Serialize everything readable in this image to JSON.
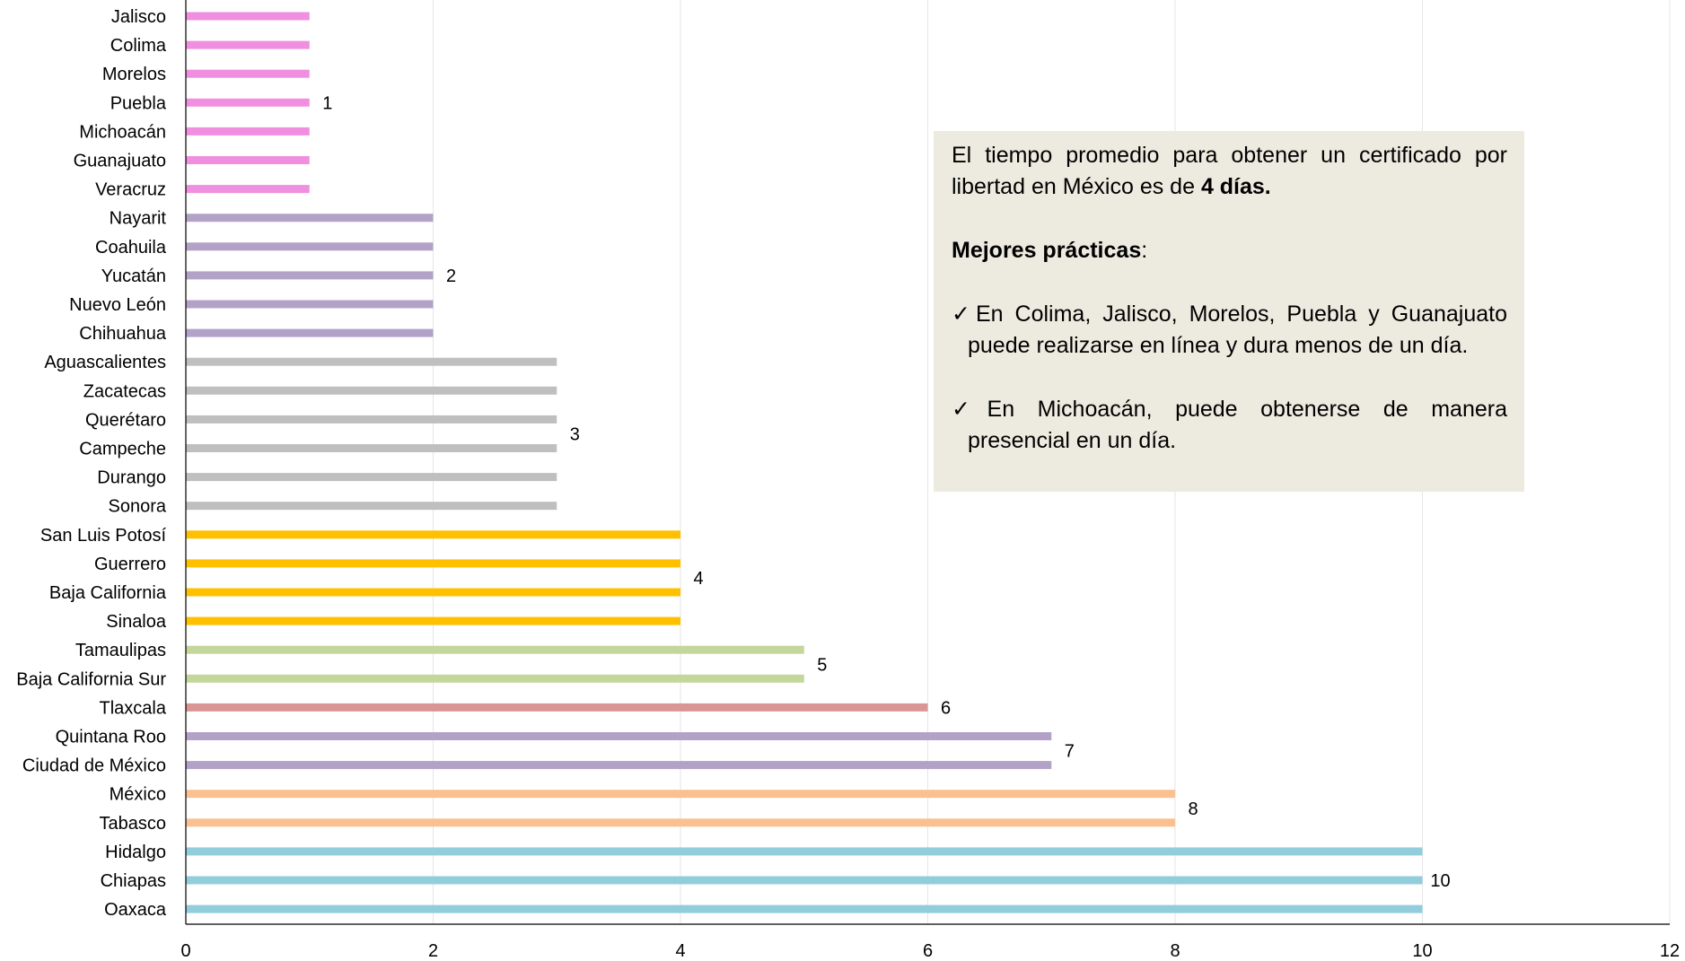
{
  "chart_data": {
    "type": "bar",
    "orientation": "horizontal",
    "categories": [
      "Jalisco",
      "Colima",
      "Morelos",
      "Puebla",
      "Michoacán",
      "Guanajuato",
      "Veracruz",
      "Nayarit",
      "Coahuila",
      "Yucatán",
      "Nuevo León",
      "Chihuahua",
      "Aguascalientes",
      "Zacatecas",
      "Querétaro",
      "Campeche",
      "Durango",
      "Sonora",
      "San Luis Potosí",
      "Guerrero",
      "Baja California",
      "Sinaloa",
      "Tamaulipas",
      "Baja California Sur",
      "Tlaxcala",
      "Quintana Roo",
      "Ciudad de México",
      "México",
      "Tabasco",
      "Hidalgo",
      "Chiapas",
      "Oaxaca"
    ],
    "values": [
      1,
      1,
      1,
      1,
      1,
      1,
      1,
      2,
      2,
      2,
      2,
      2,
      3,
      3,
      3,
      3,
      3,
      3,
      4,
      4,
      4,
      4,
      5,
      5,
      6,
      7,
      7,
      8,
      8,
      10,
      10,
      10
    ],
    "bar_colors": [
      "#f08fe0",
      "#f08fe0",
      "#f08fe0",
      "#f08fe0",
      "#f08fe0",
      "#f08fe0",
      "#f08fe0",
      "#b3a2c7",
      "#b3a2c7",
      "#b3a2c7",
      "#b3a2c7",
      "#b3a2c7",
      "#bfbfbf",
      "#bfbfbf",
      "#bfbfbf",
      "#bfbfbf",
      "#bfbfbf",
      "#bfbfbf",
      "#ffc000",
      "#ffc000",
      "#ffc000",
      "#ffc000",
      "#c4d79b",
      "#c4d79b",
      "#d99694",
      "#b3a2c7",
      "#b3a2c7",
      "#fac090",
      "#fac090",
      "#92cddc",
      "#92cddc",
      "#92cddc"
    ],
    "group_labels": [
      {
        "text": "1",
        "value": 1,
        "from": 0,
        "to": 6
      },
      {
        "text": "2",
        "value": 2,
        "from": 7,
        "to": 11
      },
      {
        "text": "3",
        "value": 3,
        "from": 12,
        "to": 17
      },
      {
        "text": "4",
        "value": 4,
        "from": 18,
        "to": 21
      },
      {
        "text": "5",
        "value": 5,
        "from": 22,
        "to": 23
      },
      {
        "text": "6",
        "value": 6,
        "from": 24,
        "to": 24
      },
      {
        "text": "7",
        "value": 7,
        "from": 25,
        "to": 26
      },
      {
        "text": "8",
        "value": 8,
        "from": 27,
        "to": 28
      },
      {
        "text": "10",
        "value": 10,
        "from": 29,
        "to": 31
      }
    ],
    "xlim": [
      0,
      12
    ],
    "xticks": [
      "0",
      "2",
      "4",
      "6",
      "8",
      "10",
      "12"
    ],
    "grid": true,
    "title": "",
    "xlabel": "",
    "ylabel": ""
  },
  "note": {
    "intro_start": "El tiempo promedio para obtener un certificado por libertad en México es de ",
    "intro_bold": "4 días.",
    "heading": "Mejores prácticas",
    "heading_suffix": ":",
    "bullet1": "✓En Colima, Jalisco, Morelos, Puebla y Guanajuato puede realizarse en línea y dura menos de un día.",
    "bullet2": "✓En Michoacán, puede obtenerse de manera presencial en un día."
  }
}
